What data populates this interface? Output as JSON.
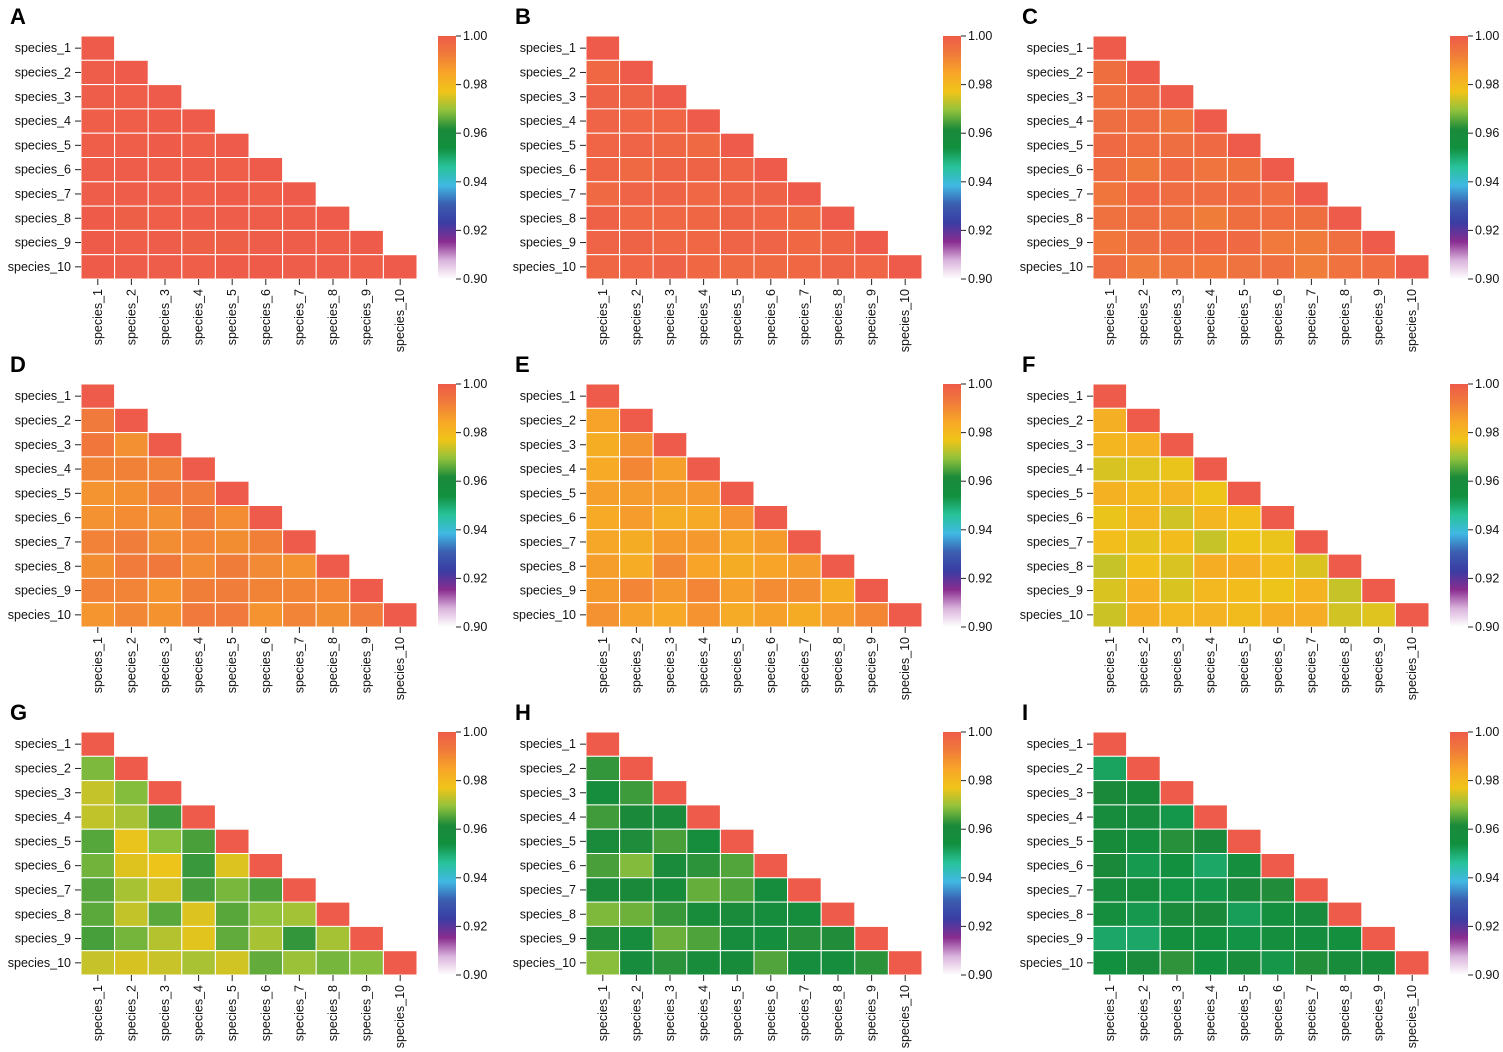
{
  "figure": {
    "colormap": [
      "#ffffff",
      "#d9b3dc",
      "#8a2c8f",
      "#3a3da3",
      "#3b5eb0",
      "#40b8e3",
      "#28c39a",
      "#12903f",
      "#1a8a3a",
      "#8fc13c",
      "#f0c419",
      "#f7a628",
      "#f07b3a",
      "#ee5b4a"
    ],
    "colorbar": {
      "vmin": 0.9,
      "vmax": 1.0,
      "ticks": [
        "1.00",
        "0.98",
        "0.96",
        "0.94",
        "0.92",
        "0.90"
      ]
    }
  },
  "chart_data": [
    {
      "type": "heatmap",
      "panel": "A",
      "base": 0.9995,
      "spread": 0.0004,
      "seed": 11,
      "categories": [
        "species_1",
        "species_2",
        "species_3",
        "species_4",
        "species_5",
        "species_6",
        "species_7",
        "species_8",
        "species_9",
        "species_10"
      ]
    },
    {
      "type": "heatmap",
      "panel": "B",
      "base": 0.9975,
      "spread": 0.001,
      "seed": 23,
      "categories": [
        "species_1",
        "species_2",
        "species_3",
        "species_4",
        "species_5",
        "species_6",
        "species_7",
        "species_8",
        "species_9",
        "species_10"
      ]
    },
    {
      "type": "heatmap",
      "panel": "C",
      "base": 0.9945,
      "spread": 0.0025,
      "seed": 37,
      "categories": [
        "species_1",
        "species_2",
        "species_3",
        "species_4",
        "species_5",
        "species_6",
        "species_7",
        "species_8",
        "species_9",
        "species_10"
      ]
    },
    {
      "type": "heatmap",
      "panel": "D",
      "base": 0.9905,
      "spread": 0.003,
      "seed": 41,
      "categories": [
        "species_1",
        "species_2",
        "species_3",
        "species_4",
        "species_5",
        "species_6",
        "species_7",
        "species_8",
        "species_9",
        "species_10"
      ]
    },
    {
      "type": "heatmap",
      "panel": "E",
      "base": 0.9865,
      "spread": 0.004,
      "seed": 53,
      "categories": [
        "species_1",
        "species_2",
        "species_3",
        "species_4",
        "species_5",
        "species_6",
        "species_7",
        "species_8",
        "species_9",
        "species_10"
      ]
    },
    {
      "type": "heatmap",
      "panel": "F",
      "base": 0.9785,
      "spread": 0.005,
      "seed": 67,
      "categories": [
        "species_1",
        "species_2",
        "species_3",
        "species_4",
        "species_5",
        "species_6",
        "species_7",
        "species_8",
        "species_9",
        "species_10"
      ]
    },
    {
      "type": "heatmap",
      "panel": "G",
      "base": 0.97,
      "spread": 0.007,
      "seed": 79,
      "categories": [
        "species_1",
        "species_2",
        "species_3",
        "species_4",
        "species_5",
        "species_6",
        "species_7",
        "species_8",
        "species_9",
        "species_10"
      ]
    },
    {
      "type": "heatmap",
      "panel": "H",
      "base": 0.963,
      "spread": 0.006,
      "seed": 83,
      "categories": [
        "species_1",
        "species_2",
        "species_3",
        "species_4",
        "species_5",
        "species_6",
        "species_7",
        "species_8",
        "species_9",
        "species_10"
      ]
    },
    {
      "type": "heatmap",
      "panel": "I",
      "base": 0.957,
      "spread": 0.007,
      "seed": 97,
      "categories": [
        "species_1",
        "species_2",
        "species_3",
        "species_4",
        "species_5",
        "species_6",
        "species_7",
        "species_8",
        "species_9",
        "species_10"
      ]
    }
  ]
}
